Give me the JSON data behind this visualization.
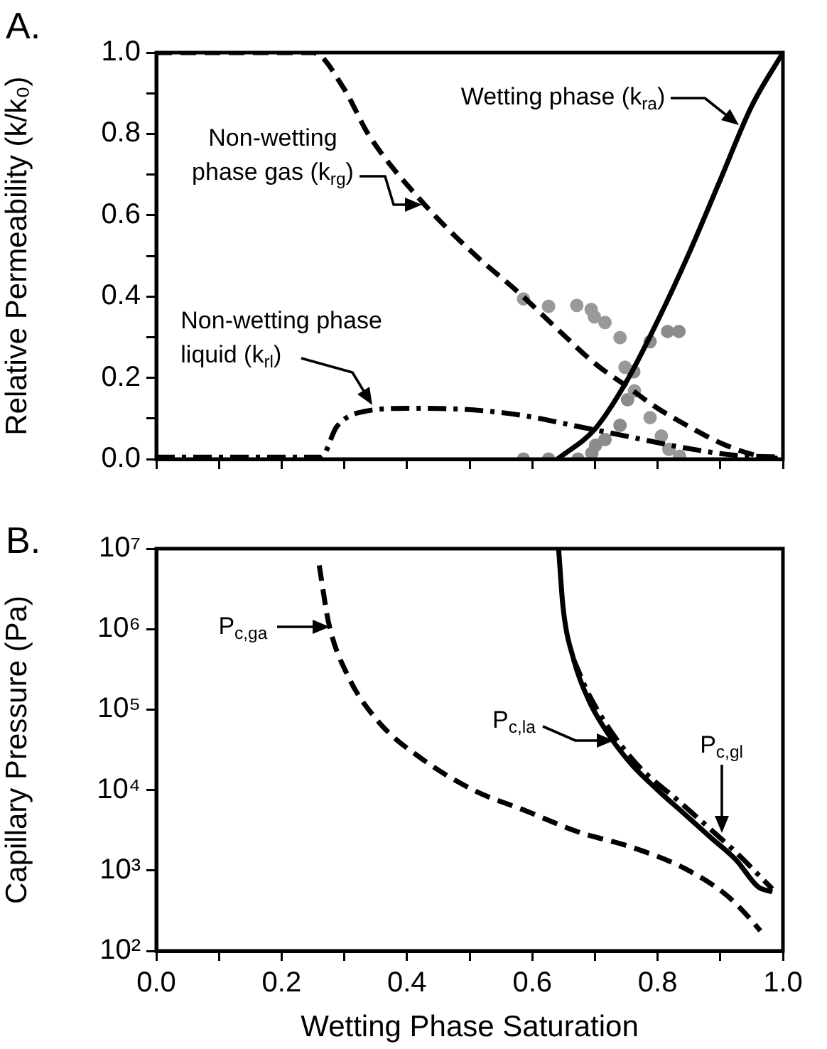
{
  "chart_data": [
    {
      "type": "line",
      "title": "A.",
      "ylabel": "Relative Permeability (k/k₀)",
      "xlim": [
        0,
        1
      ],
      "ylim": [
        0,
        1
      ],
      "xticks": [
        0,
        {
          "value": 0.1,
          "label": null
        },
        {
          "value": 0.2,
          "label": null
        },
        {
          "value": 0.3,
          "label": null
        },
        {
          "value": 0.4,
          "label": null
        },
        {
          "value": 0.5,
          "label": null
        },
        {
          "value": 0.6,
          "label": null
        },
        {
          "value": 0.7,
          "label": null
        },
        {
          "value": 0.8,
          "label": null
        },
        {
          "value": 0.9,
          "label": null
        },
        {
          "value": 1,
          "label": null
        }
      ],
      "yticks": [
        {
          "value": 0,
          "label": "0.0"
        },
        {
          "value": 0.1,
          "label": null
        },
        0.2,
        {
          "value": 0.3,
          "label": null
        },
        0.4,
        {
          "value": 0.5,
          "label": null
        },
        0.6,
        {
          "value": 0.7,
          "label": null
        },
        0.8,
        {
          "value": 0.9,
          "label": null
        },
        {
          "value": 1,
          "label": "1.0"
        }
      ],
      "tick_labels": "y",
      "grid": false,
      "legend": false,
      "series": [
        {
          "type": "line",
          "color": "#000000",
          "line_style": "dashed",
          "marker": "none",
          "x": [
            0,
            0.25,
            0.3,
            0.338,
            0.42,
            0.506,
            0.578,
            0.64,
            0.7,
            0.75,
            0.8,
            0.85,
            0.9,
            0.95,
            1
          ],
          "values": [
            1,
            1,
            0.91,
            0.8,
            0.64,
            0.506,
            0.41,
            0.32,
            0.235,
            0.18,
            0.125,
            0.08,
            0.04,
            0.012,
            0
          ]
        },
        {
          "type": "line",
          "color": "#000000",
          "line_style": "solid",
          "marker": "none",
          "x": [
            0.64,
            0.7,
            0.75,
            0.8,
            0.85,
            0.9,
            0.95,
            1
          ],
          "values": [
            0,
            0.074,
            0.19,
            0.34,
            0.506,
            0.687,
            0.868,
            1
          ]
        },
        {
          "type": "line",
          "color": "#000000",
          "line_style": "dashdot",
          "marker": "none",
          "x": [
            0,
            0.263,
            0.288,
            0.338,
            0.4,
            0.506,
            0.59,
            0.674,
            0.758,
            0.842,
            0.926,
            1
          ],
          "values": [
            0.005,
            0.005,
            0.08,
            0.119,
            0.125,
            0.121,
            0.106,
            0.08,
            0.054,
            0.028,
            0.009,
            0.005
          ]
        },
        {
          "type": "scatter",
          "color": "#999999",
          "marker": "circle",
          "x": [
            0.586,
            0.626,
            0.671,
            0.694,
            0.699,
            0.716,
            0.74,
            0.748,
            0.763,
            0.788,
            0.806,
            0.818,
            0.835
          ],
          "values": [
            0.394,
            0.376,
            0.378,
            0.368,
            0.35,
            0.336,
            0.299,
            0.226,
            0.168,
            0.102,
            0.057,
            0.024,
            0.007
          ]
        },
        {
          "type": "scatter",
          "color": "#8c8c8c",
          "marker": "circle",
          "x": [
            0.586,
            0.626,
            0.673,
            0.695,
            0.701,
            0.716,
            0.74,
            0.752,
            0.762,
            0.788,
            0.816,
            0.834
          ],
          "values": [
            0,
            0,
            0,
            0.015,
            0.034,
            0.048,
            0.083,
            0.146,
            0.215,
            0.289,
            0.314,
            0.314
          ]
        }
      ],
      "annotations": [
        {
          "text": "Wetting phase (k$_{ra}$)",
          "x": 0.93,
          "y": 0.823
        },
        {
          "text": "Non-wetting phase gas (k$_{rg}$)",
          "x": 0.424,
          "y": 0.627
        },
        {
          "text": "Non-wetting phase liquid (k$_{rl}$)",
          "x": 0.345,
          "y": 0.132
        }
      ]
    },
    {
      "type": "line",
      "title": "B.",
      "xlabel": "Wetting Phase Saturation",
      "ylabel": "Capillary Pressure (Pa)",
      "log": "y",
      "xlim": [
        0,
        1
      ],
      "ylim": [
        100,
        10000000
      ],
      "xticks": [
        {
          "value": 0,
          "label": "0.0"
        },
        {
          "value": 0.1,
          "label": null
        },
        0.2,
        {
          "value": 0.3,
          "label": null
        },
        0.4,
        {
          "value": 0.5,
          "label": null
        },
        0.6,
        {
          "value": 0.7,
          "label": null
        },
        0.8,
        {
          "value": 0.9,
          "label": null
        },
        {
          "value": 1,
          "label": "1.0"
        }
      ],
      "yticks": [
        {
          "value": 100,
          "label": "10²"
        },
        {
          "value": 1000,
          "label": "10³"
        },
        {
          "value": 10000,
          "label": "10⁴"
        },
        {
          "value": 100000,
          "label": "10⁵"
        },
        {
          "value": 1000000,
          "label": "10⁶"
        },
        {
          "value": 10000000,
          "label": "10⁷"
        }
      ],
      "grid": false,
      "legend": false,
      "series": [
        {
          "type": "line",
          "color": "#000000",
          "line_style": "dashed",
          "marker": "none",
          "x": [
            0.26,
            0.275,
            0.305,
            0.355,
            0.422,
            0.506,
            0.59,
            0.674,
            0.758,
            0.842,
            0.909,
            0.943,
            0.964
          ],
          "values": [
            6200000,
            1200000,
            270000,
            70000,
            25000,
            10000,
            5500,
            3000,
            1950,
            1070,
            500,
            275,
            178
          ]
        },
        {
          "type": "line",
          "color": "#000000",
          "line_style": "solid",
          "marker": "none",
          "x": [
            0.642,
            0.649,
            0.666,
            0.691,
            0.725,
            0.758,
            0.8,
            0.842,
            0.884,
            0.926,
            0.96,
            0.983
          ],
          "values": [
            10000000,
            1900000,
            420000,
            126000,
            45000,
            21000,
            10000,
            5100,
            2600,
            1330,
            630,
            540
          ]
        },
        {
          "type": "line",
          "color": "#000000",
          "line_style": "dashdot",
          "marker": "none",
          "x": [
            0.666,
            0.691,
            0.758,
            0.842,
            0.926,
            0.983
          ],
          "values": [
            420000,
            150000,
            25000,
            6400,
            1650,
            590
          ]
        }
      ],
      "annotations": [
        {
          "text": "P$_{c,ga}$",
          "x": 0.277,
          "y": 1050000
        },
        {
          "text": "P$_{c,la}$",
          "x": 0.73,
          "y": 41000
        },
        {
          "text": "P$_{c,gl}$",
          "x": 0.902,
          "y": 2950
        }
      ]
    }
  ]
}
